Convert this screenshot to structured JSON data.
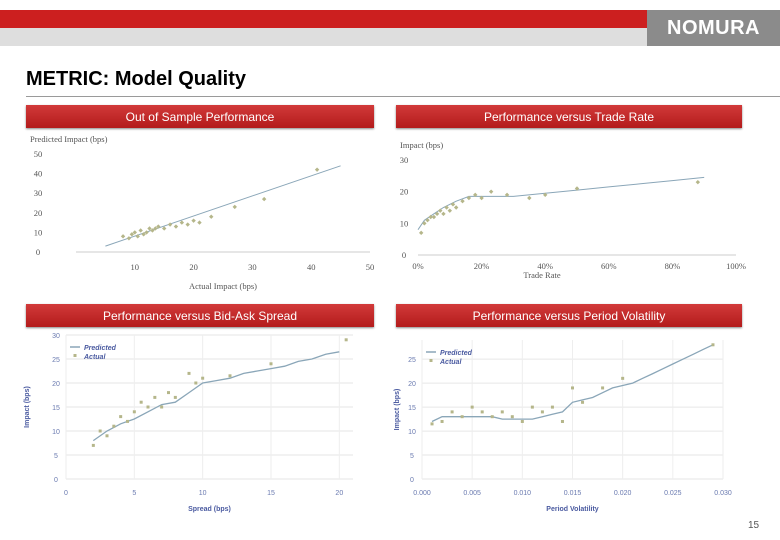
{
  "header": {
    "logo": "NOMURA",
    "title": "METRIC: Model Quality",
    "page_number": "15"
  },
  "colors": {
    "brand_red": "#cc1f1f",
    "logo_grey": "#8b8b8b",
    "predicted": "#8aa6b8",
    "actual": "#b5b68a"
  },
  "panels": [
    {
      "title": "Out of Sample Performance"
    },
    {
      "title": "Performance versus Trade Rate"
    },
    {
      "title": "Performance versus Bid-Ask Spread"
    },
    {
      "title": "Performance versus Period Volatility"
    }
  ],
  "chart_data": [
    {
      "type": "scatter",
      "title": "Out of Sample Performance",
      "xlabel": "Actual Impact (bps)",
      "ylabel": "Predicted Impact (bps)",
      "xlim": [
        0,
        50
      ],
      "ylim": [
        0,
        50
      ],
      "xticks": [
        "10",
        "20",
        "30",
        "40",
        "50"
      ],
      "yticks": [
        "0",
        "10",
        "20",
        "30",
        "40",
        "50"
      ],
      "fit_line": {
        "x": [
          5,
          45
        ],
        "y": [
          3,
          44
        ]
      },
      "points": {
        "x": [
          8,
          9,
          9.5,
          10,
          10.5,
          11,
          11.5,
          12,
          12.5,
          13,
          13.5,
          14,
          15,
          16,
          17,
          18,
          19,
          20,
          21,
          23,
          27,
          32,
          41
        ],
        "y": [
          8,
          7,
          9,
          10,
          8,
          11,
          9,
          10,
          12,
          11,
          12,
          13,
          12,
          14,
          13,
          15,
          14,
          16,
          15,
          18,
          23,
          27,
          42
        ]
      }
    },
    {
      "type": "scatter",
      "title": "Performance versus Trade Rate",
      "xlabel": "Trade Rate",
      "ylabel": "Impact (bps)",
      "xlim": [
        0,
        1
      ],
      "ylim": [
        0,
        30
      ],
      "xticks": [
        "0%",
        "20%",
        "40%",
        "60%",
        "80%",
        "100%"
      ],
      "yticks": [
        "0",
        "10",
        "20",
        "30"
      ],
      "fit_line": {
        "x": [
          0,
          0.02,
          0.05,
          0.08,
          0.12,
          0.16,
          0.2,
          0.3,
          0.4,
          0.5,
          0.6,
          0.7,
          0.8,
          0.9
        ],
        "y": [
          8,
          11,
          13,
          15,
          17,
          18.5,
          18.5,
          18.5,
          19.5,
          20.5,
          21.5,
          22.5,
          23.5,
          24.5
        ]
      },
      "points": {
        "x": [
          0.01,
          0.02,
          0.03,
          0.04,
          0.05,
          0.06,
          0.07,
          0.08,
          0.09,
          0.1,
          0.11,
          0.12,
          0.14,
          0.16,
          0.18,
          0.2,
          0.23,
          0.28,
          0.35,
          0.4,
          0.5,
          0.88
        ],
        "y": [
          7,
          10,
          11,
          12,
          12,
          13,
          14,
          13,
          15,
          14,
          16,
          15,
          17,
          18,
          19,
          18,
          20,
          19,
          18,
          19,
          21,
          23
        ]
      }
    },
    {
      "type": "line",
      "title": "Performance versus Bid-Ask Spread",
      "xlabel": "Spread (bps)",
      "ylabel": "Impact (bps)",
      "xlim": [
        0,
        21
      ],
      "ylim": [
        0,
        30
      ],
      "xticks": [
        "0",
        "5",
        "10",
        "15",
        "20"
      ],
      "yticks": [
        "0",
        "5",
        "10",
        "15",
        "20",
        "25",
        "30"
      ],
      "legend": [
        "Predicted",
        "Actual"
      ],
      "series": [
        {
          "name": "Predicted",
          "x": [
            2,
            3,
            4,
            5,
            6,
            7,
            8,
            9,
            10,
            11,
            12,
            13,
            14,
            15,
            16,
            17,
            18,
            19,
            20
          ],
          "y": [
            8,
            10,
            11.5,
            12.5,
            14,
            15.5,
            16,
            18,
            20,
            20.5,
            21,
            22,
            22.5,
            23,
            23.5,
            24.5,
            25,
            26,
            26.5
          ]
        },
        {
          "name": "Actual",
          "x": [
            2,
            2.5,
            3,
            3.5,
            4,
            4.5,
            5,
            5.5,
            6,
            6.5,
            7,
            7.5,
            8,
            9,
            9.5,
            10,
            12,
            15,
            20.5
          ],
          "y": [
            7,
            10,
            9,
            11,
            13,
            12,
            14,
            16,
            15,
            17,
            15,
            18,
            17,
            22,
            20,
            21,
            21.5,
            24,
            29
          ]
        }
      ]
    },
    {
      "type": "line",
      "title": "Performance versus Period Volatility",
      "xlabel": "Period Volatility",
      "ylabel": "Impact (bps)",
      "xlim": [
        0,
        0.03
      ],
      "ylim": [
        0,
        29
      ],
      "xticks": [
        "0.000",
        "0.005",
        "0.010",
        "0.015",
        "0.020",
        "0.025",
        "0.030"
      ],
      "yticks": [
        "0",
        "5",
        "10",
        "15",
        "20",
        "25"
      ],
      "legend": [
        "Predicted",
        "Actual"
      ],
      "series": [
        {
          "name": "Predicted",
          "x": [
            0.001,
            0.002,
            0.003,
            0.004,
            0.005,
            0.006,
            0.007,
            0.008,
            0.009,
            0.01,
            0.011,
            0.012,
            0.013,
            0.014,
            0.015,
            0.016,
            0.017,
            0.018,
            0.019,
            0.02,
            0.021,
            0.022,
            0.023,
            0.024,
            0.025,
            0.026,
            0.027,
            0.028,
            0.029
          ],
          "y": [
            12,
            13,
            13,
            13,
            13,
            13,
            13,
            12.5,
            12.5,
            12.5,
            12.5,
            13,
            13.5,
            14,
            16,
            16.5,
            17,
            18,
            19,
            19.5,
            20,
            21,
            22,
            23,
            24,
            25,
            26,
            27,
            28
          ]
        },
        {
          "name": "Actual",
          "x": [
            0.001,
            0.002,
            0.003,
            0.004,
            0.005,
            0.006,
            0.007,
            0.008,
            0.009,
            0.01,
            0.011,
            0.012,
            0.013,
            0.014,
            0.015,
            0.016,
            0.018,
            0.02,
            0.029
          ],
          "y": [
            11.5,
            12,
            14,
            13,
            15,
            14,
            13,
            14,
            13,
            12,
            15,
            14,
            15,
            12,
            19,
            16,
            19,
            21,
            28
          ]
        }
      ]
    }
  ]
}
